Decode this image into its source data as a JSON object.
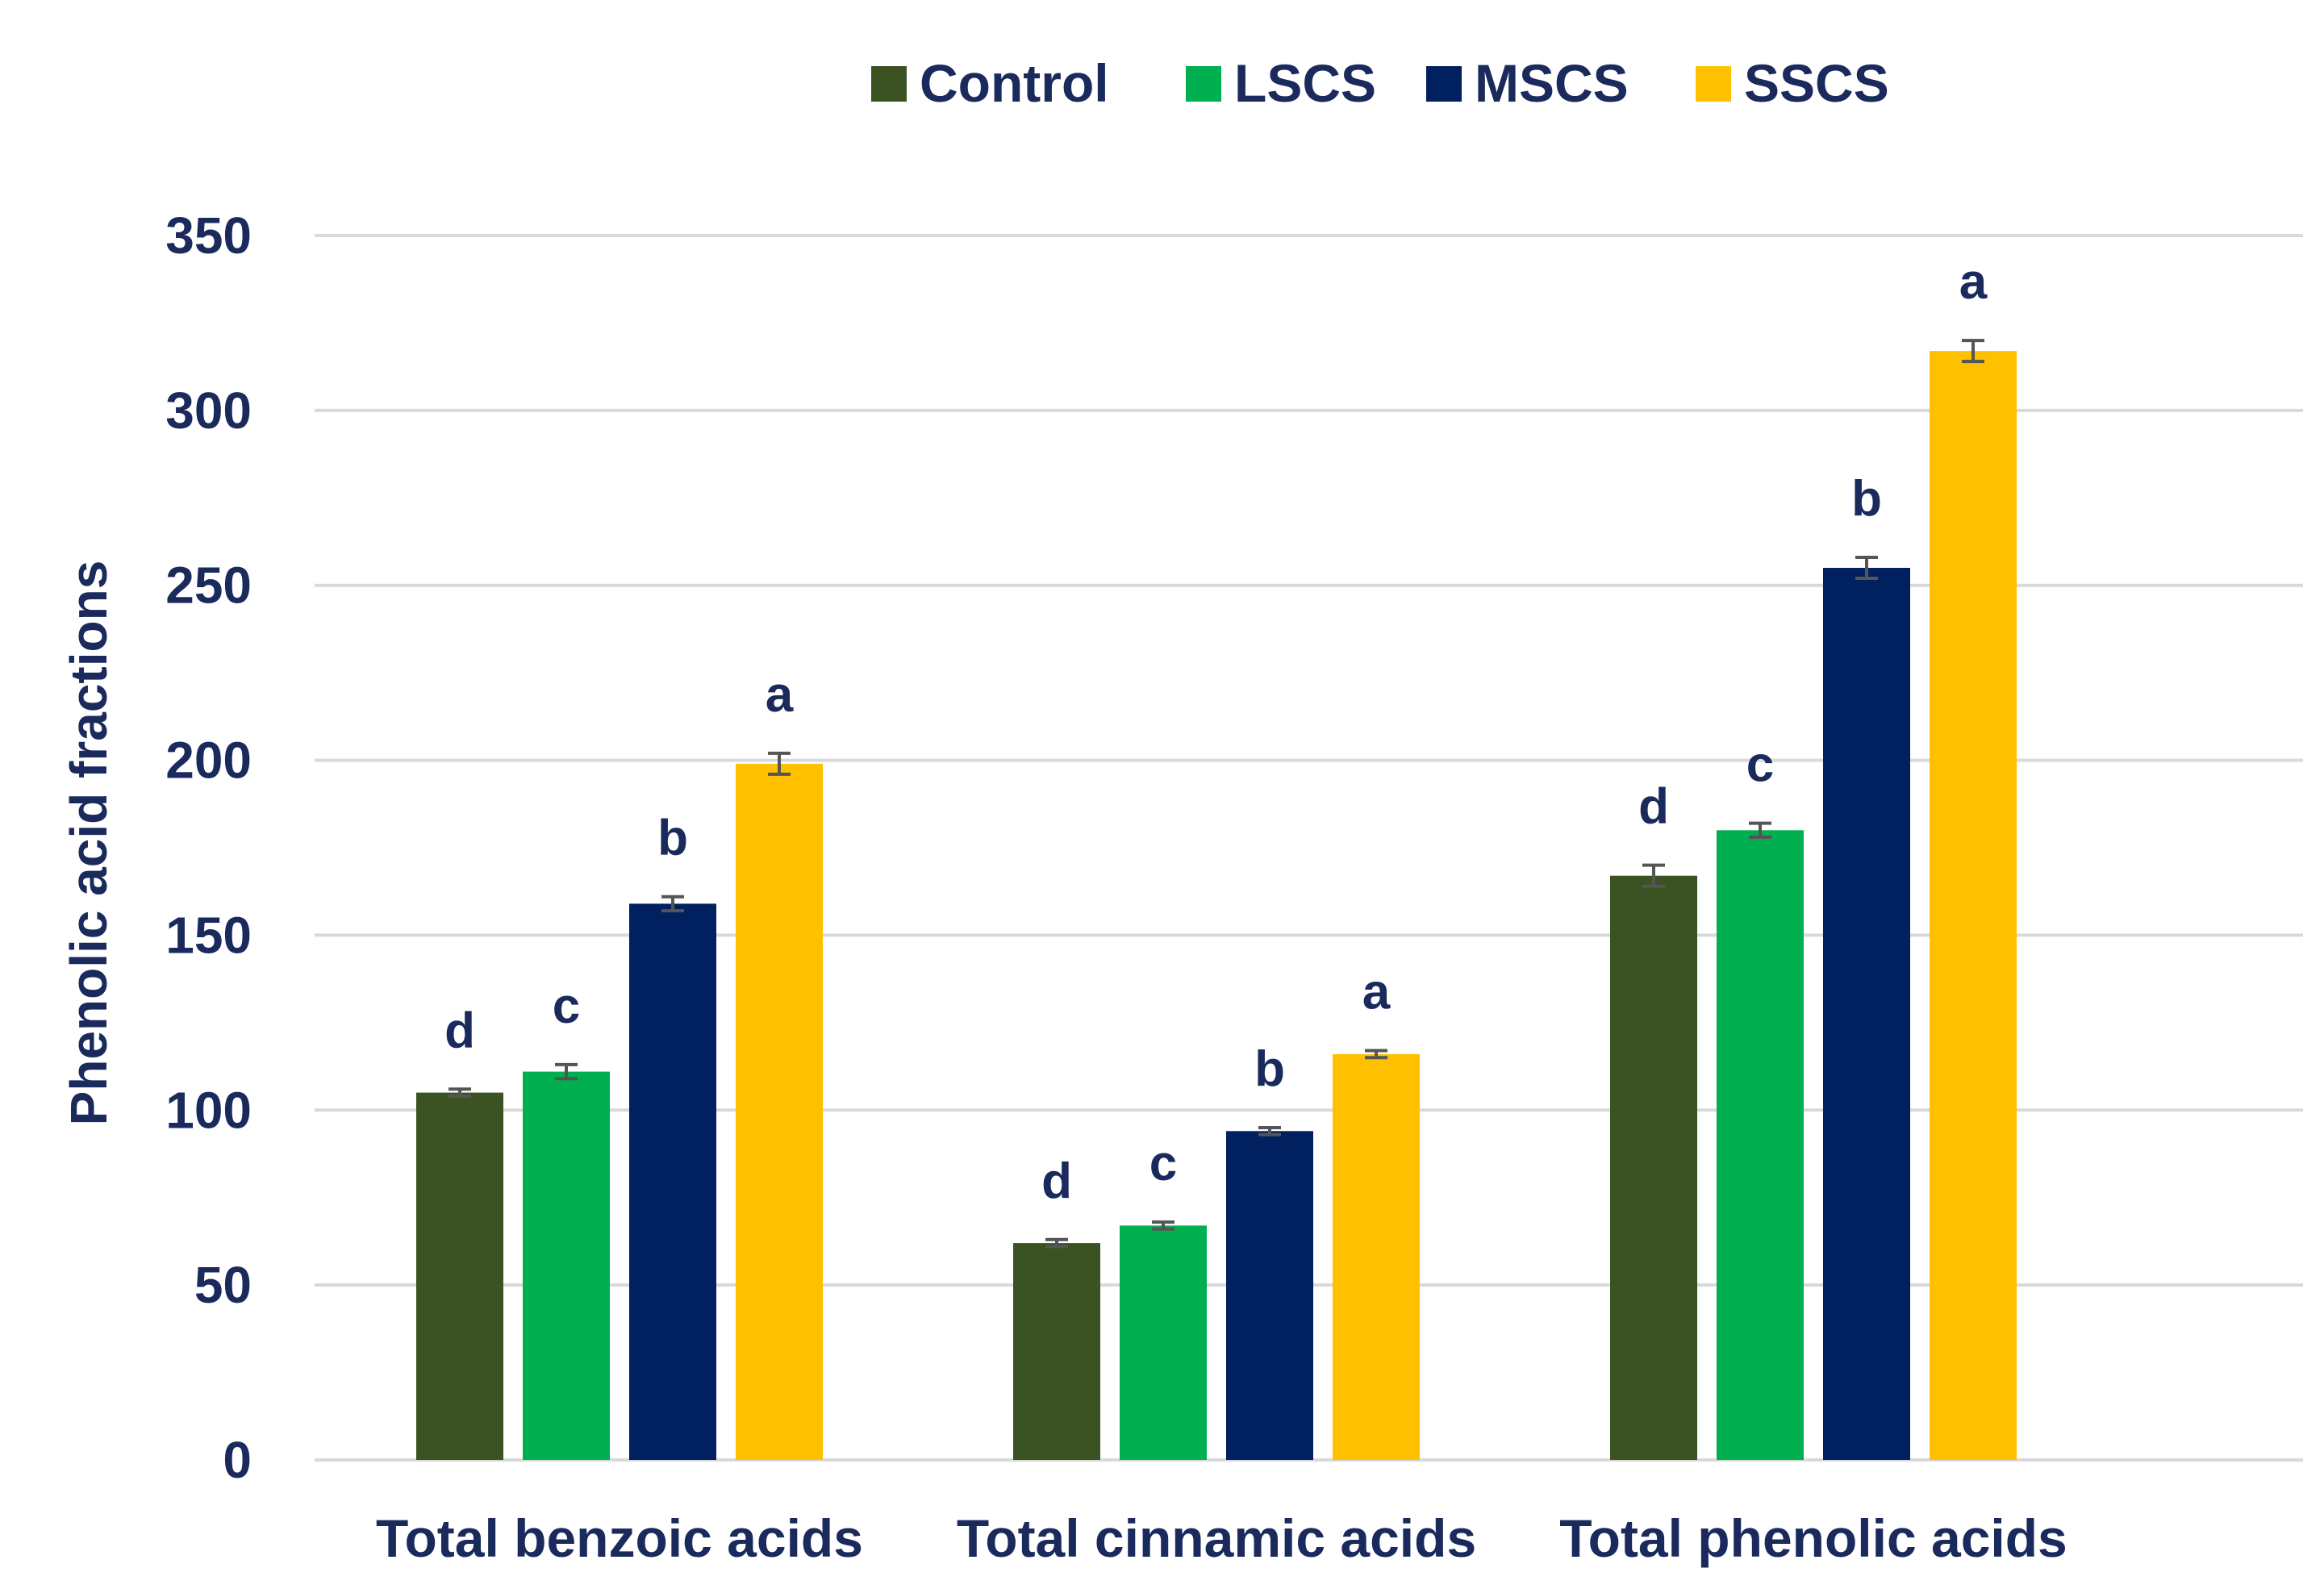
{
  "chart_data": {
    "type": "bar",
    "ylabel": "Phenolic acid fractions",
    "xlabel": "",
    "ylim": [
      0,
      350
    ],
    "yticks": [
      0,
      50,
      100,
      150,
      200,
      250,
      300,
      350
    ],
    "grid": true,
    "legend_position": "top",
    "categories": [
      "Total benzoic acids",
      "Total cinnamic acids",
      "Total phenolic acids"
    ],
    "series": [
      {
        "name": "Control",
        "color": "#3b5323",
        "values": [
          105,
          62,
          167
        ],
        "errors": [
          1,
          1,
          3
        ],
        "letters": [
          "d",
          "d",
          "d"
        ]
      },
      {
        "name": "LSCS",
        "color": "#00b050",
        "values": [
          111,
          67,
          180
        ],
        "errors": [
          2,
          1,
          2
        ],
        "letters": [
          "c",
          "c",
          "c"
        ]
      },
      {
        "name": "MSCS",
        "color": "#002060",
        "values": [
          159,
          94,
          255
        ],
        "errors": [
          2,
          1,
          3
        ],
        "letters": [
          "b",
          "b",
          "b"
        ]
      },
      {
        "name": "SSCS",
        "color": "#ffc000",
        "values": [
          199,
          116,
          317
        ],
        "errors": [
          3,
          1,
          3
        ],
        "letters": [
          "a",
          "a",
          "a"
        ]
      }
    ]
  }
}
